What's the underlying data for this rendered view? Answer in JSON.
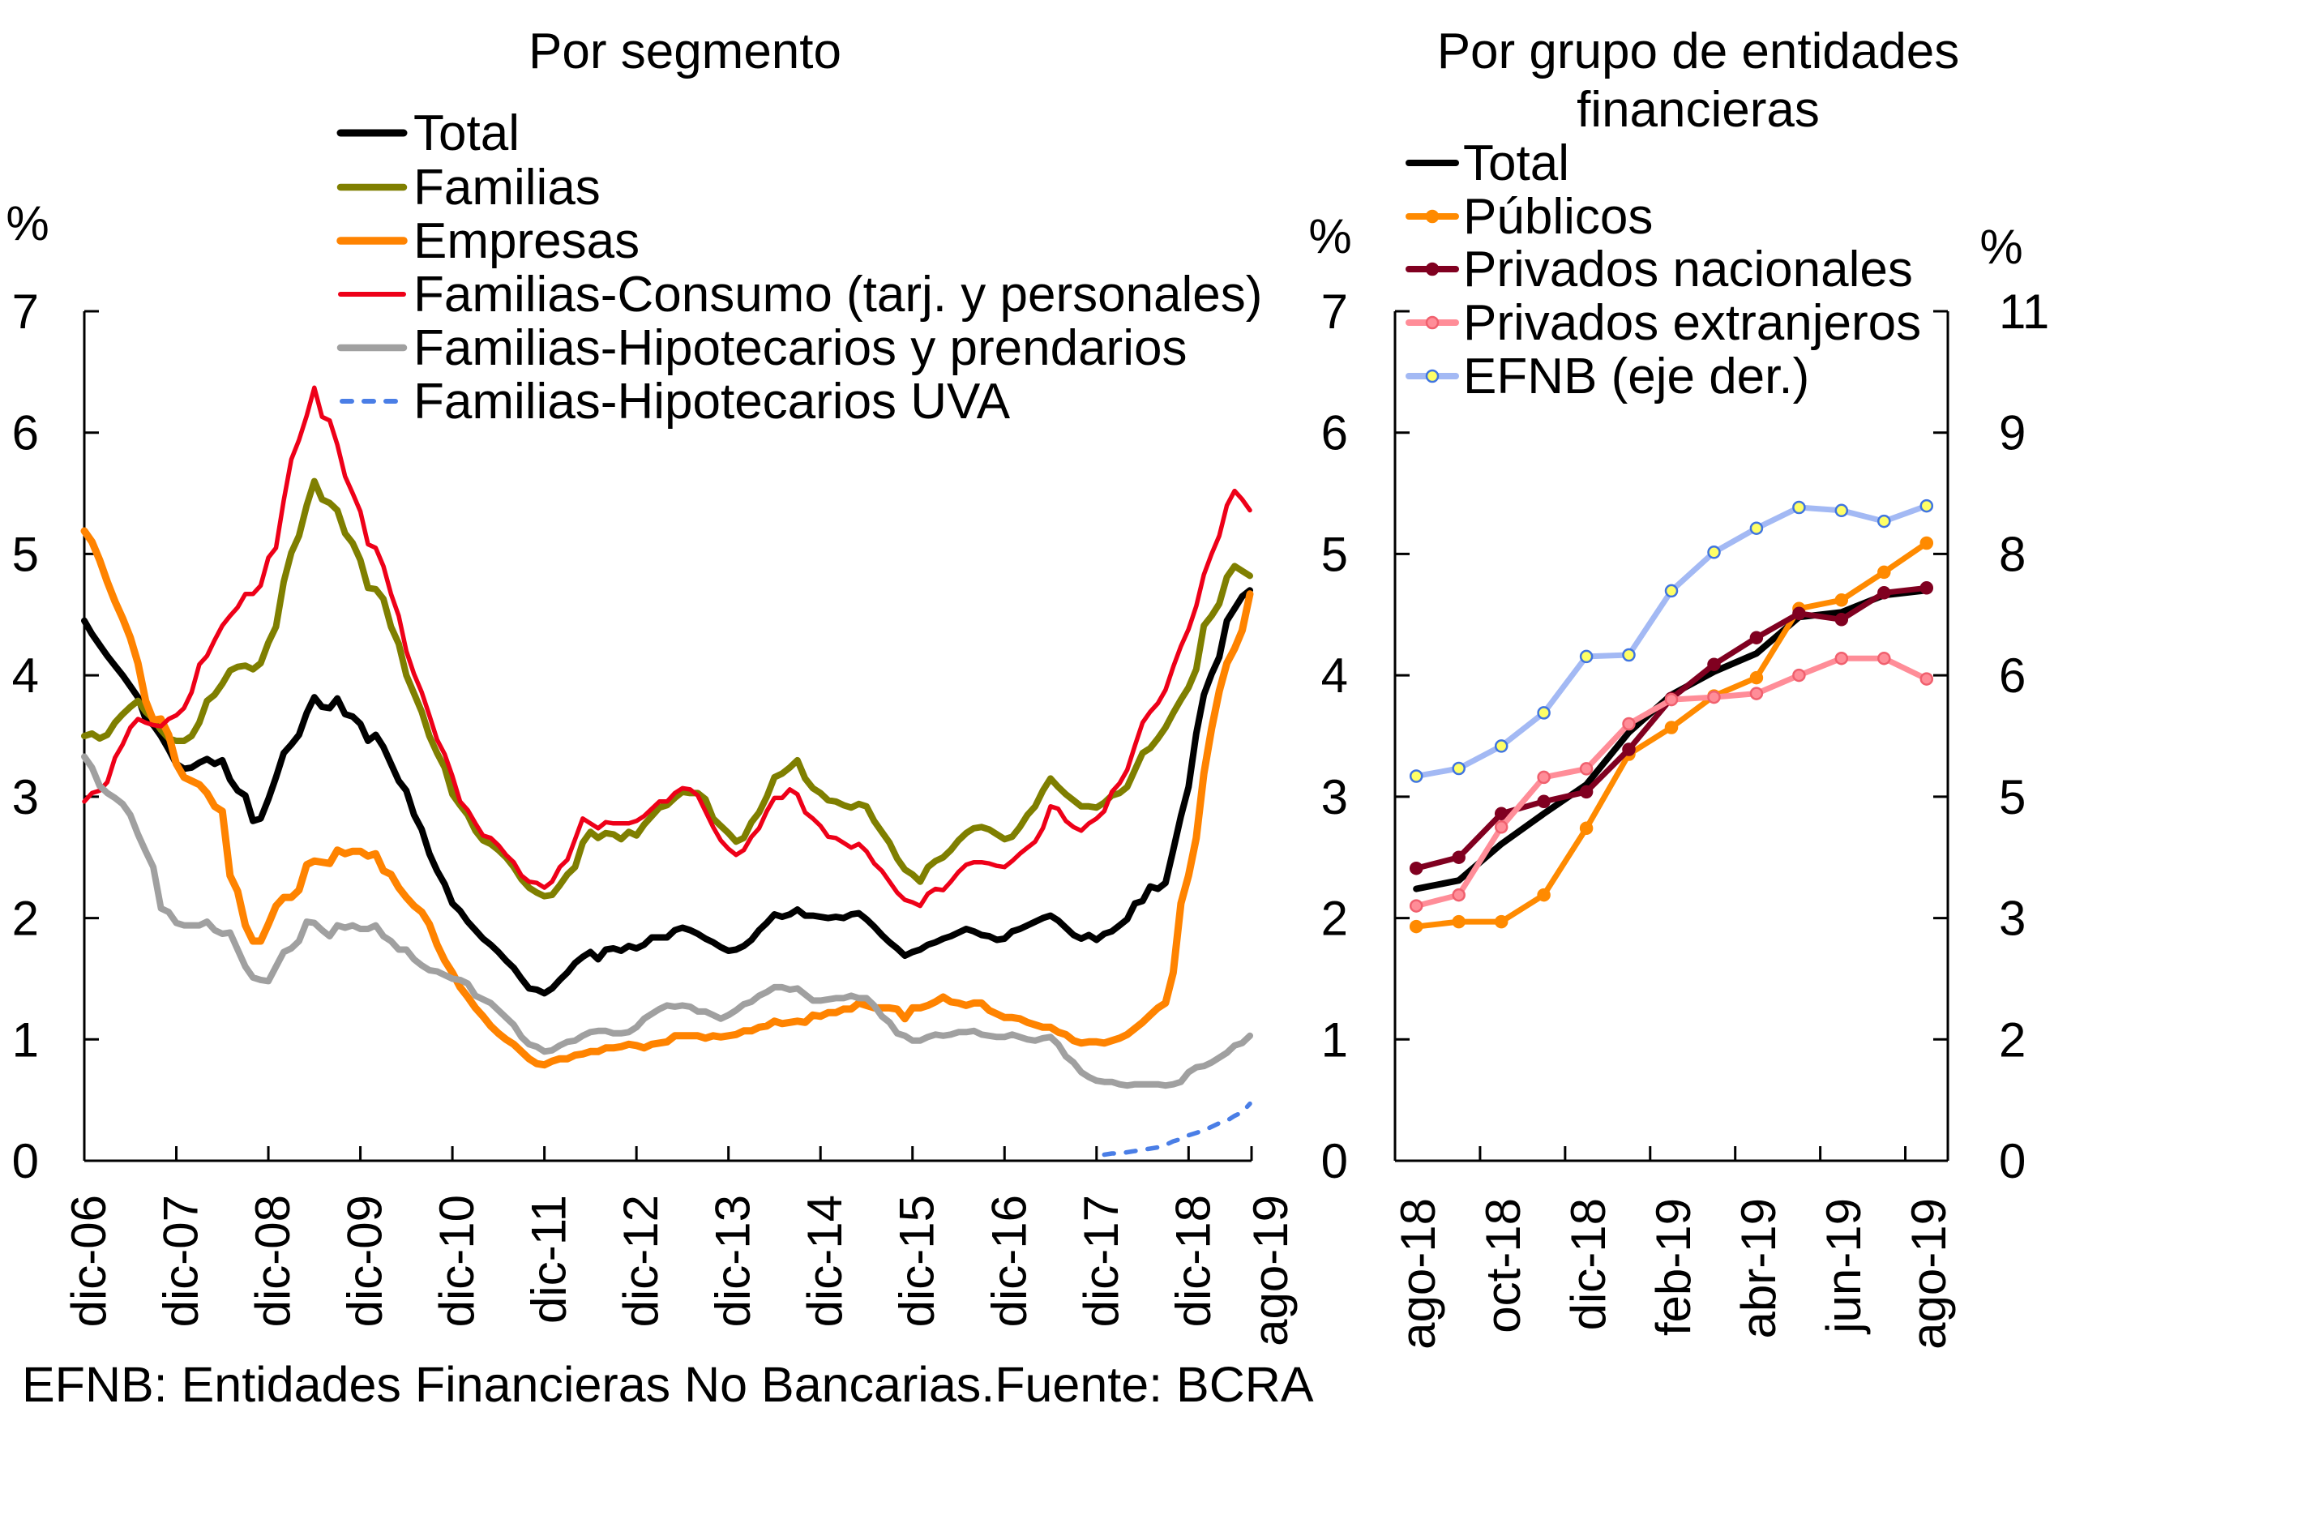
{
  "figure": {
    "footnote": "EFNB: Entidades Financieras No Bancarias.Fuente: BCRA"
  },
  "chart_data": [
    {
      "type": "line",
      "title": "Por segmento",
      "xlabel": "",
      "ylabel": "%",
      "ylim": [
        0,
        7
      ],
      "yticks": [
        0,
        1,
        2,
        3,
        4,
        5,
        6,
        7
      ],
      "ytick_labels": [
        "0",
        "1",
        "2",
        "3",
        "4",
        "5",
        "6",
        "7"
      ],
      "frequency": "monthly",
      "x_start": "dic-06",
      "x_end": "ago-19",
      "xtick_labels": [
        "dic-06",
        "dic-07",
        "dic-08",
        "dic-09",
        "dic-10",
        "dic-11",
        "dic-12",
        "dic-13",
        "dic-14",
        "dic-15",
        "dic-16",
        "dic-17",
        "dic-18",
        "ago-19"
      ],
      "grid": false,
      "legend": "top-center (inside plot)",
      "series": [
        {
          "name": "Total",
          "color": "#000000",
          "style": "solid",
          "start": "dic-06",
          "values": [
            4.45,
            4.34,
            4.25,
            4.16,
            4.08,
            4.0,
            3.91,
            3.82,
            3.64,
            3.59,
            3.5,
            3.39,
            3.27,
            3.23,
            3.24,
            3.28,
            3.31,
            3.27,
            3.3,
            3.14,
            3.05,
            3.01,
            2.8,
            2.82,
            2.98,
            3.16,
            3.36,
            3.43,
            3.51,
            3.69,
            3.82,
            3.74,
            3.73,
            3.81,
            3.68,
            3.66,
            3.6,
            3.46,
            3.51,
            3.41,
            3.27,
            3.13,
            3.05,
            2.85,
            2.73,
            2.53,
            2.39,
            2.28,
            2.12,
            2.06,
            1.97,
            1.9,
            1.83,
            1.78,
            1.72,
            1.65,
            1.59,
            1.5,
            1.42,
            1.41,
            1.38,
            1.42,
            1.49,
            1.55,
            1.63,
            1.68,
            1.72,
            1.66,
            1.74,
            1.75,
            1.73,
            1.77,
            1.75,
            1.78,
            1.84,
            1.84,
            1.84,
            1.9,
            1.92,
            1.9,
            1.87,
            1.83,
            1.8,
            1.76,
            1.73,
            1.74,
            1.77,
            1.82,
            1.9,
            1.96,
            2.03,
            2.01,
            2.03,
            2.07,
            2.02,
            2.02,
            2.01,
            2.0,
            2.01,
            2.0,
            2.03,
            2.04,
            1.99,
            1.93,
            1.86,
            1.8,
            1.75,
            1.69,
            1.72,
            1.74,
            1.78,
            1.8,
            1.83,
            1.85,
            1.88,
            1.91,
            1.89,
            1.86,
            1.85,
            1.82,
            1.83,
            1.89,
            1.91,
            1.94,
            1.97,
            2.0,
            2.02,
            1.98,
            1.92,
            1.86,
            1.83,
            1.86,
            1.82,
            1.87,
            1.89,
            1.94,
            1.99,
            2.12,
            2.14,
            2.26,
            2.24,
            2.29,
            2.56,
            2.84,
            3.08,
            3.52,
            3.84,
            4.01,
            4.15,
            4.45,
            4.55,
            4.65,
            4.7
          ]
        },
        {
          "name": "Familias",
          "color": "#7f7f00",
          "style": "solid",
          "start": "dic-06",
          "values": [
            3.5,
            3.52,
            3.48,
            3.51,
            3.61,
            3.68,
            3.74,
            3.79,
            3.7,
            3.64,
            3.55,
            3.48,
            3.46,
            3.46,
            3.5,
            3.61,
            3.79,
            3.84,
            3.93,
            4.04,
            4.07,
            4.08,
            4.05,
            4.1,
            4.27,
            4.4,
            4.77,
            5.01,
            5.15,
            5.4,
            5.6,
            5.45,
            5.42,
            5.36,
            5.17,
            5.09,
            4.95,
            4.72,
            4.71,
            4.63,
            4.4,
            4.26,
            4.0,
            3.85,
            3.7,
            3.5,
            3.36,
            3.24,
            3.02,
            2.93,
            2.85,
            2.72,
            2.64,
            2.61,
            2.56,
            2.5,
            2.42,
            2.32,
            2.25,
            2.21,
            2.18,
            2.19,
            2.27,
            2.36,
            2.42,
            2.62,
            2.71,
            2.66,
            2.7,
            2.69,
            2.65,
            2.71,
            2.68,
            2.77,
            2.84,
            2.91,
            2.93,
            2.99,
            3.04,
            3.03,
            3.03,
            2.98,
            2.82,
            2.76,
            2.7,
            2.63,
            2.66,
            2.79,
            2.87,
            3.0,
            3.16,
            3.19,
            3.24,
            3.3,
            3.15,
            3.07,
            3.03,
            2.97,
            2.96,
            2.93,
            2.91,
            2.94,
            2.92,
            2.8,
            2.71,
            2.62,
            2.49,
            2.4,
            2.36,
            2.3,
            2.42,
            2.47,
            2.5,
            2.56,
            2.64,
            2.7,
            2.74,
            2.75,
            2.73,
            2.69,
            2.65,
            2.67,
            2.75,
            2.85,
            2.92,
            3.05,
            3.15,
            3.08,
            3.02,
            2.97,
            2.92,
            2.92,
            2.91,
            2.95,
            3.01,
            3.03,
            3.08,
            3.22,
            3.36,
            3.4,
            3.48,
            3.57,
            3.69,
            3.8,
            3.9,
            4.05,
            4.41,
            4.49,
            4.59,
            4.81,
            4.9,
            4.86,
            4.82
          ]
        },
        {
          "name": "Empresas",
          "color": "#ff8300",
          "style": "solid",
          "start": "dic-06",
          "values": [
            5.19,
            5.1,
            4.95,
            4.77,
            4.61,
            4.47,
            4.31,
            4.1,
            3.79,
            3.63,
            3.64,
            3.51,
            3.27,
            3.16,
            3.13,
            3.1,
            3.03,
            2.92,
            2.88,
            2.35,
            2.22,
            1.94,
            1.81,
            1.81,
            1.95,
            2.1,
            2.17,
            2.17,
            2.23,
            2.44,
            2.47,
            2.46,
            2.45,
            2.56,
            2.53,
            2.55,
            2.55,
            2.51,
            2.53,
            2.39,
            2.36,
            2.25,
            2.17,
            2.1,
            2.05,
            1.95,
            1.78,
            1.65,
            1.55,
            1.43,
            1.35,
            1.26,
            1.19,
            1.11,
            1.05,
            1.0,
            0.96,
            0.9,
            0.84,
            0.8,
            0.79,
            0.82,
            0.84,
            0.84,
            0.87,
            0.88,
            0.9,
            0.9,
            0.93,
            0.93,
            0.94,
            0.96,
            0.95,
            0.93,
            0.96,
            0.97,
            0.98,
            1.03,
            1.03,
            1.03,
            1.03,
            1.01,
            1.03,
            1.02,
            1.03,
            1.04,
            1.07,
            1.07,
            1.1,
            1.11,
            1.15,
            1.13,
            1.14,
            1.15,
            1.14,
            1.2,
            1.19,
            1.22,
            1.22,
            1.25,
            1.25,
            1.3,
            1.28,
            1.26,
            1.26,
            1.26,
            1.25,
            1.17,
            1.26,
            1.26,
            1.28,
            1.31,
            1.35,
            1.31,
            1.3,
            1.28,
            1.3,
            1.3,
            1.24,
            1.21,
            1.18,
            1.18,
            1.17,
            1.14,
            1.12,
            1.1,
            1.1,
            1.06,
            1.04,
            0.99,
            0.97,
            0.98,
            0.98,
            0.97,
            0.99,
            1.01,
            1.04,
            1.09,
            1.14,
            1.2,
            1.26,
            1.3,
            1.55,
            2.12,
            2.35,
            2.66,
            3.19,
            3.56,
            3.87,
            4.1,
            4.22,
            4.37,
            4.67
          ]
        },
        {
          "name": "Familias-Consumo (tarj. y personales)",
          "color": "#ee0018",
          "style": "solid",
          "start": "dic-06",
          "values": [
            2.96,
            3.03,
            3.05,
            3.12,
            3.32,
            3.43,
            3.57,
            3.64,
            3.61,
            3.59,
            3.58,
            3.64,
            3.67,
            3.73,
            3.86,
            4.09,
            4.16,
            4.29,
            4.41,
            4.49,
            4.56,
            4.67,
            4.67,
            4.74,
            4.97,
            5.05,
            5.44,
            5.78,
            5.94,
            6.14,
            6.37,
            6.13,
            6.1,
            5.9,
            5.64,
            5.5,
            5.35,
            5.08,
            5.05,
            4.9,
            4.67,
            4.49,
            4.2,
            4.01,
            3.86,
            3.67,
            3.47,
            3.35,
            3.17,
            2.96,
            2.89,
            2.78,
            2.68,
            2.66,
            2.6,
            2.52,
            2.46,
            2.35,
            2.3,
            2.29,
            2.25,
            2.3,
            2.42,
            2.48,
            2.65,
            2.82,
            2.78,
            2.74,
            2.79,
            2.78,
            2.78,
            2.78,
            2.8,
            2.84,
            2.9,
            2.96,
            2.96,
            3.03,
            3.07,
            3.06,
            3.01,
            2.88,
            2.75,
            2.64,
            2.57,
            2.52,
            2.56,
            2.67,
            2.74,
            2.88,
            2.99,
            2.99,
            3.06,
            3.02,
            2.87,
            2.82,
            2.76,
            2.67,
            2.66,
            2.62,
            2.58,
            2.61,
            2.55,
            2.45,
            2.39,
            2.3,
            2.21,
            2.15,
            2.13,
            2.1,
            2.2,
            2.24,
            2.23,
            2.3,
            2.38,
            2.44,
            2.46,
            2.46,
            2.45,
            2.43,
            2.42,
            2.47,
            2.53,
            2.58,
            2.63,
            2.74,
            2.92,
            2.9,
            2.8,
            2.75,
            2.72,
            2.78,
            2.82,
            2.88,
            3.04,
            3.11,
            3.22,
            3.42,
            3.61,
            3.7,
            3.77,
            3.88,
            4.07,
            4.24,
            4.38,
            4.57,
            4.83,
            5.0,
            5.15,
            5.4,
            5.52,
            5.45,
            5.36
          ]
        },
        {
          "name": "Familias-Hipotecarios y prendarios",
          "color": "#a0a0a0",
          "style": "solid",
          "start": "dic-06",
          "values": [
            3.33,
            3.24,
            3.09,
            3.03,
            2.99,
            2.94,
            2.85,
            2.69,
            2.55,
            2.42,
            2.08,
            2.05,
            1.96,
            1.94,
            1.94,
            1.94,
            1.97,
            1.9,
            1.87,
            1.88,
            1.74,
            1.6,
            1.51,
            1.49,
            1.48,
            1.6,
            1.72,
            1.75,
            1.81,
            1.97,
            1.96,
            1.9,
            1.85,
            1.94,
            1.92,
            1.94,
            1.91,
            1.91,
            1.94,
            1.85,
            1.81,
            1.74,
            1.74,
            1.66,
            1.61,
            1.57,
            1.56,
            1.53,
            1.5,
            1.49,
            1.46,
            1.36,
            1.33,
            1.3,
            1.24,
            1.18,
            1.12,
            1.02,
            0.96,
            0.94,
            0.9,
            0.91,
            0.95,
            0.98,
            0.99,
            1.03,
            1.06,
            1.07,
            1.07,
            1.05,
            1.05,
            1.06,
            1.1,
            1.17,
            1.21,
            1.25,
            1.28,
            1.27,
            1.28,
            1.27,
            1.23,
            1.23,
            1.2,
            1.17,
            1.2,
            1.24,
            1.29,
            1.31,
            1.36,
            1.39,
            1.43,
            1.43,
            1.41,
            1.42,
            1.37,
            1.32,
            1.32,
            1.33,
            1.34,
            1.34,
            1.36,
            1.34,
            1.34,
            1.28,
            1.19,
            1.14,
            1.05,
            1.03,
            0.99,
            0.99,
            1.02,
            1.04,
            1.03,
            1.04,
            1.06,
            1.06,
            1.07,
            1.04,
            1.03,
            1.02,
            1.02,
            1.04,
            1.02,
            1.0,
            0.99,
            1.01,
            1.02,
            0.96,
            0.86,
            0.81,
            0.73,
            0.69,
            0.66,
            0.65,
            0.65,
            0.63,
            0.62,
            0.63,
            0.63,
            0.63,
            0.63,
            0.62,
            0.63,
            0.65,
            0.73,
            0.77,
            0.78,
            0.81,
            0.85,
            0.89,
            0.95,
            0.97,
            1.03
          ]
        },
        {
          "name": "Familias-Hipotecarios UVA",
          "color": "#4a7ee6",
          "style": "dashed",
          "start": "ene-18",
          "values": [
            0.05,
            0.06,
            0.06,
            0.07,
            0.08,
            0.09,
            0.1,
            0.11,
            0.13,
            0.16,
            0.18,
            0.21,
            0.23,
            0.25,
            0.28,
            0.31,
            0.33,
            0.37,
            0.4,
            0.47
          ]
        }
      ]
    },
    {
      "type": "line",
      "title": "Por grupo de entidades financieras",
      "title_lines": [
        "Por grupo de entidades",
        "financieras"
      ],
      "xlabel": "",
      "ylabel": "%",
      "y2label": "%",
      "ylim": [
        0,
        7
      ],
      "y2lim": [
        0,
        11
      ],
      "yticks": [
        0,
        1,
        2,
        3,
        4,
        5,
        6,
        7
      ],
      "ytick_labels": [
        "0",
        "1",
        "2",
        "3",
        "4",
        "5",
        "6",
        "7"
      ],
      "y2ticks": [
        0,
        1.5714,
        3.1429,
        4.7143,
        6.2857,
        7.8571,
        9.4286,
        11
      ],
      "y2tick_labels": [
        "0",
        "2",
        "3",
        "5",
        "6",
        "8",
        "9",
        "11"
      ],
      "categories": [
        "ago-18",
        "sep-18",
        "oct-18",
        "nov-18",
        "dic-18",
        "ene-19",
        "feb-19",
        "mar-19",
        "abr-19",
        "may-19",
        "jun-19",
        "jul-19",
        "ago-19"
      ],
      "xtick_labels": [
        "ago-18",
        "oct-18",
        "dic-18",
        "feb-19",
        "abr-19",
        "jun-19",
        "ago-19"
      ],
      "grid": false,
      "legend": "top-left (inside plot)",
      "series": [
        {
          "name": "Total",
          "color": "#000000",
          "style": "solid",
          "marker": "none",
          "axis": "left",
          "values": [
            2.24,
            2.31,
            2.61,
            2.86,
            3.1,
            3.53,
            3.84,
            4.03,
            4.18,
            4.48,
            4.52,
            4.66,
            4.7
          ]
        },
        {
          "name": "Públicos",
          "color": "#ff8a00",
          "style": "solid",
          "marker": "circle",
          "marker_fill": "#ff8a00",
          "marker_edge": "#ff8a00",
          "axis": "left",
          "values": [
            1.93,
            1.97,
            1.97,
            2.19,
            2.74,
            3.35,
            3.57,
            3.83,
            3.98,
            4.55,
            4.62,
            4.85,
            5.09
          ]
        },
        {
          "name": "Privados nacionales",
          "color": "#800020",
          "style": "solid",
          "marker": "circle",
          "marker_fill": "#800020",
          "marker_edge": "#800020",
          "axis": "left",
          "values": [
            2.41,
            2.5,
            2.86,
            2.96,
            3.04,
            3.39,
            3.81,
            4.09,
            4.31,
            4.51,
            4.46,
            4.68,
            4.72
          ]
        },
        {
          "name": "Privados extranjeros",
          "color": "#ff8d98",
          "style": "solid",
          "marker": "circle",
          "marker_fill": "#ff8d98",
          "marker_edge": "#f0606e",
          "axis": "left",
          "values": [
            2.1,
            2.19,
            2.75,
            3.16,
            3.23,
            3.6,
            3.8,
            3.82,
            3.85,
            4.0,
            4.14,
            4.14,
            3.97
          ]
        },
        {
          "name": "EFNB (eje der.)",
          "color": "#a3b9f4",
          "style": "solid",
          "marker": "circle",
          "marker_fill": "#ffff66",
          "marker_edge": "#3f74e0",
          "axis": "right",
          "values": [
            4.98,
            5.08,
            5.37,
            5.8,
            6.53,
            6.55,
            7.38,
            7.88,
            8.19,
            8.46,
            8.42,
            8.28,
            8.48
          ]
        }
      ]
    }
  ]
}
